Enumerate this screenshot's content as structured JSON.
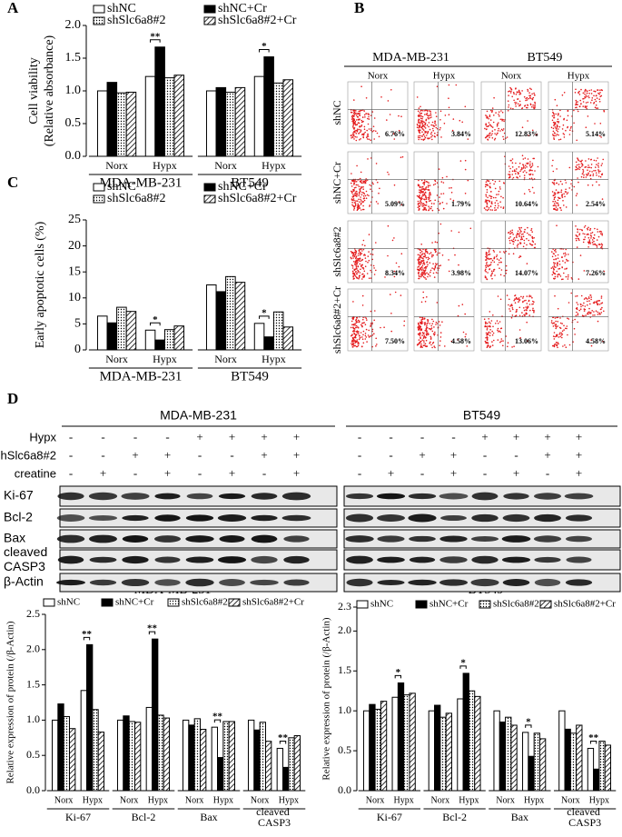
{
  "panel_labels": [
    "A",
    "B",
    "C",
    "D"
  ],
  "chart_data": [
    {
      "type": "bar",
      "y_label": [
        "Cell viability",
        "(Relative absorbance)"
      ],
      "categories": [
        "Norx",
        "Hypx",
        "Norx",
        "Hypx"
      ],
      "groups": [
        "MDA-MB-231",
        "BT549"
      ],
      "series": [
        {
          "name": "shNC",
          "color": "#ffffff",
          "pattern": "none",
          "values": [
            1.0,
            1.22,
            1.0,
            1.22
          ]
        },
        {
          "name": "shNC+Cr",
          "color": "#000000",
          "pattern": "none",
          "values": [
            1.13,
            1.67,
            1.05,
            1.52
          ]
        },
        {
          "name": "shSlc6a8#2",
          "color": "#ffffff",
          "pattern": "dots",
          "values": [
            0.97,
            1.2,
            0.98,
            1.12
          ]
        },
        {
          "name": "shSlc6a8#2+Cr",
          "color": "#ffffff",
          "pattern": "hatch",
          "values": [
            0.98,
            1.24,
            1.05,
            1.17
          ]
        }
      ],
      "ylim": [
        0,
        2.0
      ],
      "yticks": [
        {
          "value": 0,
          "label": "0.0"
        },
        0.5,
        {
          "value": 1,
          "label": "1.0"
        },
        1.5,
        {
          "value": 2,
          "label": "2.0"
        }
      ],
      "annotations": [
        "**",
        "*"
      ]
    },
    {
      "type": "bar",
      "y_label": [
        "Early apoptotic cells (%)"
      ],
      "categories": [
        "Norx",
        "Hypx",
        "Norx",
        "Hypx"
      ],
      "groups": [
        "MDA-MB-231",
        "BT549"
      ],
      "series": [
        {
          "name": "shNC",
          "color": "#ffffff",
          "pattern": "none",
          "values": [
            6.5,
            3.8,
            12.5,
            5.1
          ]
        },
        {
          "name": "shNC+Cr",
          "color": "#000000",
          "pattern": "none",
          "values": [
            5.2,
            1.9,
            11.2,
            2.5
          ]
        },
        {
          "name": "shSlc6a8#2",
          "color": "#ffffff",
          "pattern": "dots",
          "values": [
            8.2,
            3.9,
            14.1,
            7.3
          ]
        },
        {
          "name": "shSlc6a8#2+Cr",
          "color": "#ffffff",
          "pattern": "hatch",
          "values": [
            7.4,
            4.6,
            13.0,
            4.4
          ]
        }
      ],
      "ylim": [
        0,
        25
      ],
      "yticks": [
        0,
        5,
        10,
        15,
        20,
        25
      ],
      "annotations": [
        "*",
        "*"
      ]
    },
    {
      "type": "bar",
      "title": "MDA-MB-231",
      "y_label": [
        "Relative expression of protein (/β-Actin)"
      ],
      "categories": [
        "Norx",
        "Hypx",
        "Norx",
        "Hypx",
        "Norx",
        "Hypx",
        "Norx",
        "Hypx"
      ],
      "groups": [
        "Ki-67",
        "Bcl-2",
        "Bax",
        "cleaved CASP3"
      ],
      "series": [
        {
          "name": "shNC",
          "color": "#ffffff",
          "pattern": "none",
          "values": [
            1.0,
            1.42,
            1.0,
            1.18,
            1.0,
            0.9,
            1.0,
            0.6
          ]
        },
        {
          "name": "shNC+Cr",
          "color": "#000000",
          "pattern": "none",
          "values": [
            1.23,
            2.07,
            1.06,
            2.15,
            0.93,
            0.47,
            0.86,
            0.33
          ]
        },
        {
          "name": "shSlc6a8#2",
          "color": "#ffffff",
          "pattern": "dots",
          "values": [
            1.05,
            1.15,
            0.98,
            1.07,
            1.02,
            0.98,
            0.97,
            0.75
          ]
        },
        {
          "name": "shSlc6a8#2+Cr",
          "color": "#ffffff",
          "pattern": "hatch",
          "values": [
            0.88,
            0.83,
            0.97,
            1.03,
            0.87,
            0.98,
            0.7,
            0.78
          ]
        }
      ],
      "ylim": [
        0,
        2.5
      ],
      "yticks": [
        {
          "value": 0,
          "label": "0.0"
        },
        0.5,
        {
          "value": 1,
          "label": "1.0"
        },
        1.5,
        {
          "value": 2,
          "label": "2.0"
        },
        2.5
      ],
      "annotations": [
        "**",
        "**",
        "**",
        "**"
      ]
    },
    {
      "type": "bar",
      "title": "BT549",
      "y_label": [
        "Relative expression of protein (/β-Actin)"
      ],
      "categories": [
        "Norx",
        "Hypx",
        "Norx",
        "Hypx",
        "Norx",
        "Hypx",
        "Norx",
        "Hypx"
      ],
      "groups": [
        "Ki-67",
        "Bcl-2",
        "Bax",
        "cleaved CASP3"
      ],
      "series": [
        {
          "name": "shNC",
          "color": "#ffffff",
          "pattern": "none",
          "values": [
            1.0,
            1.17,
            1.0,
            1.15,
            1.0,
            0.73,
            1.0,
            0.53
          ]
        },
        {
          "name": "shNC+Cr",
          "color": "#000000",
          "pattern": "none",
          "values": [
            1.08,
            1.35,
            1.07,
            1.47,
            0.86,
            0.43,
            0.77,
            0.27
          ]
        },
        {
          "name": "shSlc6a8#2",
          "color": "#ffffff",
          "pattern": "dots",
          "values": [
            1.02,
            1.2,
            0.92,
            1.25,
            0.92,
            0.72,
            0.72,
            0.62
          ]
        },
        {
          "name": "shSlc6a8#2+Cr",
          "color": "#ffffff",
          "pattern": "hatch",
          "values": [
            1.12,
            1.22,
            0.97,
            1.18,
            0.82,
            0.65,
            0.82,
            0.57
          ]
        }
      ],
      "ylim": [
        0,
        2.3
      ],
      "yticks": [
        {
          "value": 0,
          "label": "0.0"
        },
        0.5,
        {
          "value": 1,
          "label": "1.0"
        },
        1.5,
        {
          "value": 2,
          "label": "2.0"
        },
        2.3
      ],
      "annotations": [
        "*",
        "*",
        "*",
        "**"
      ]
    }
  ],
  "flow": {
    "cells": [
      "MDA-MB-231",
      "BT549"
    ],
    "conditions": [
      "Norx",
      "Hypx",
      "Norx",
      "Hypx"
    ],
    "rows": [
      {
        "label": "shNC",
        "percents": [
          "6.76%",
          "3.84%",
          "12.83%",
          "5.14%"
        ]
      },
      {
        "label": "shNC+Cr",
        "percents": [
          "5.09%",
          "1.79%",
          "10.64%",
          "2.54%"
        ]
      },
      {
        "label": "shSlc6a8#2",
        "percents": [
          "8.34%",
          "3.98%",
          "14.07%",
          "7.26%"
        ]
      },
      {
        "label": "shSlc6a8#2+Cr",
        "percents": [
          "7.50%",
          "4.58%",
          "13.06%",
          "4.58%"
        ]
      }
    ]
  },
  "blot": {
    "cells": [
      "MDA-MB-231",
      "BT549"
    ],
    "treatments": [
      {
        "label": "Hypx",
        "signs": [
          "-",
          "-",
          "-",
          "-",
          "+",
          "+",
          "+",
          "+",
          "-",
          "-",
          "-",
          "-",
          "+",
          "+",
          "+",
          "+"
        ]
      },
      {
        "label": "shSlc6a8#2",
        "signs": [
          "-",
          "-",
          "+",
          "+",
          "-",
          "-",
          "+",
          "+",
          "-",
          "-",
          "+",
          "+",
          "-",
          "-",
          "+",
          "+"
        ]
      },
      {
        "label": "creatine",
        "signs": [
          "-",
          "+",
          "-",
          "+",
          "-",
          "+",
          "-",
          "+",
          "-",
          "+",
          "-",
          "+",
          "-",
          "+",
          "-",
          "+"
        ]
      }
    ],
    "bands": [
      "Ki-67",
      "Bcl-2",
      "Bax",
      "cleaved CASP3",
      "β-Actin"
    ]
  }
}
